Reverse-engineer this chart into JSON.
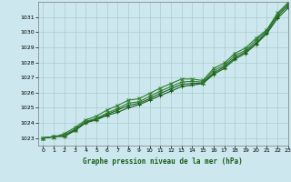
{
  "xlabel": "Graphe pression niveau de la mer (hPa)",
  "xlim": [
    -0.5,
    23
  ],
  "ylim": [
    1022.5,
    1032.0
  ],
  "yticks": [
    1023,
    1024,
    1025,
    1026,
    1027,
    1028,
    1029,
    1030,
    1031
  ],
  "xticks": [
    0,
    1,
    2,
    3,
    4,
    5,
    6,
    7,
    8,
    9,
    10,
    11,
    12,
    13,
    14,
    15,
    16,
    17,
    18,
    19,
    20,
    21,
    22,
    23
  ],
  "bg_color": "#cce8ee",
  "grid_color": "#aacccc",
  "line_color": "#1a5e1a",
  "series": [
    [
      1023.0,
      1023.1,
      1023.1,
      1023.5,
      1024.0,
      1024.2,
      1024.5,
      1024.7,
      1025.0,
      1025.2,
      1025.5,
      1025.8,
      1026.1,
      1026.4,
      1026.5,
      1026.6,
      1027.2,
      1027.6,
      1028.2,
      1028.6,
      1029.2,
      1029.9,
      1030.9,
      1031.6
    ],
    [
      1023.0,
      1023.1,
      1023.15,
      1023.55,
      1024.05,
      1024.25,
      1024.55,
      1024.85,
      1025.15,
      1025.3,
      1025.6,
      1025.95,
      1026.25,
      1026.55,
      1026.6,
      1026.65,
      1027.3,
      1027.7,
      1028.3,
      1028.7,
      1029.3,
      1030.0,
      1031.05,
      1031.75
    ],
    [
      1023.0,
      1023.1,
      1023.2,
      1023.6,
      1024.1,
      1024.3,
      1024.65,
      1024.95,
      1025.3,
      1025.4,
      1025.75,
      1026.1,
      1026.4,
      1026.7,
      1026.75,
      1026.7,
      1027.45,
      1027.8,
      1028.45,
      1028.8,
      1029.45,
      1030.1,
      1031.15,
      1031.85
    ],
    [
      1023.0,
      1023.05,
      1023.3,
      1023.7,
      1024.2,
      1024.45,
      1024.85,
      1025.15,
      1025.5,
      1025.6,
      1025.95,
      1026.3,
      1026.6,
      1026.9,
      1026.9,
      1026.8,
      1027.6,
      1027.95,
      1028.6,
      1028.95,
      1029.6,
      1030.15,
      1031.25,
      1031.95
    ]
  ],
  "series_styles": [
    {
      "color": "#1a5e1a",
      "lw": 0.8,
      "marker": "+",
      "ms": 3.5
    },
    {
      "color": "#1a5e1a",
      "lw": 0.8,
      "marker": "x",
      "ms": 3.0
    },
    {
      "color": "#2d7a2d",
      "lw": 0.8,
      "marker": "+",
      "ms": 3.5
    },
    {
      "color": "#2d7a2d",
      "lw": 0.8,
      "marker": "x",
      "ms": 3.0
    }
  ]
}
